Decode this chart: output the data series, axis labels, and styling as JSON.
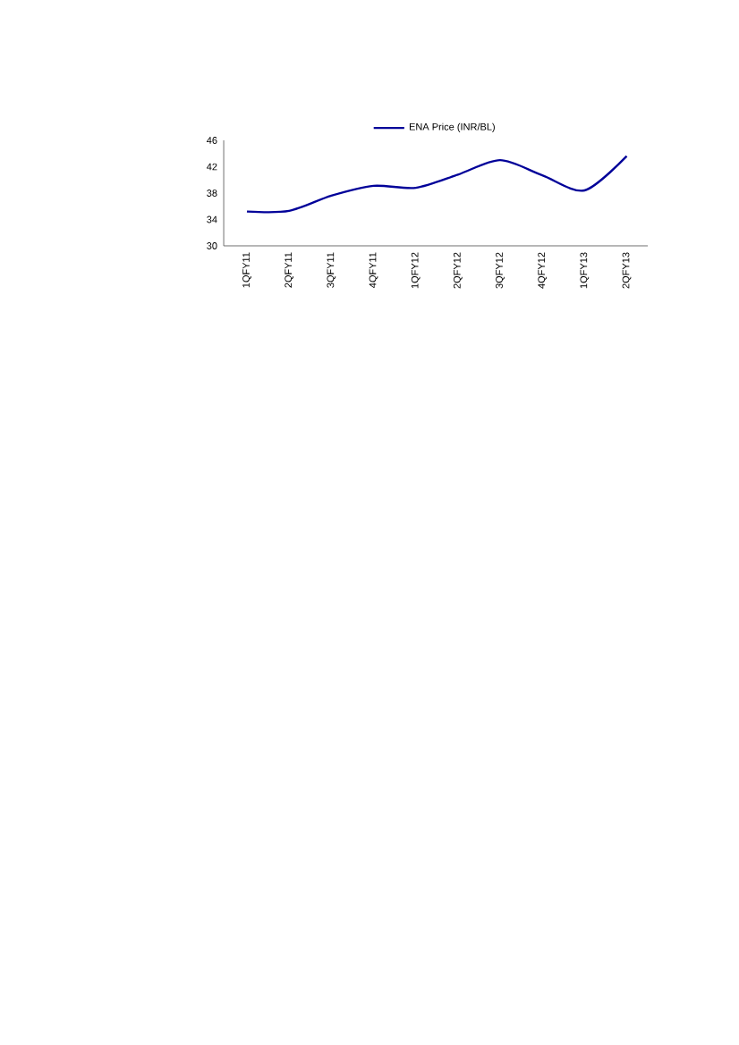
{
  "chart_data": {
    "type": "line",
    "categories": [
      "1QFY11",
      "2QFY11",
      "3QFY11",
      "4QFY11",
      "1QFY12",
      "2QFY12",
      "3QFY12",
      "4QFY12",
      "1QFY13",
      "2QFY13"
    ],
    "series": [
      {
        "name": "ENA Price (INR/BL)",
        "color": "#000099",
        "values": [
          35.2,
          35.3,
          37.6,
          39.1,
          38.8,
          40.8,
          43.0,
          40.7,
          38.4,
          43.6
        ]
      }
    ],
    "ylim": [
      30,
      46
    ],
    "yticks": [
      30,
      34,
      38,
      42,
      46
    ],
    "grid": false,
    "legend": "top",
    "marker": "none",
    "line_style": "solid"
  }
}
